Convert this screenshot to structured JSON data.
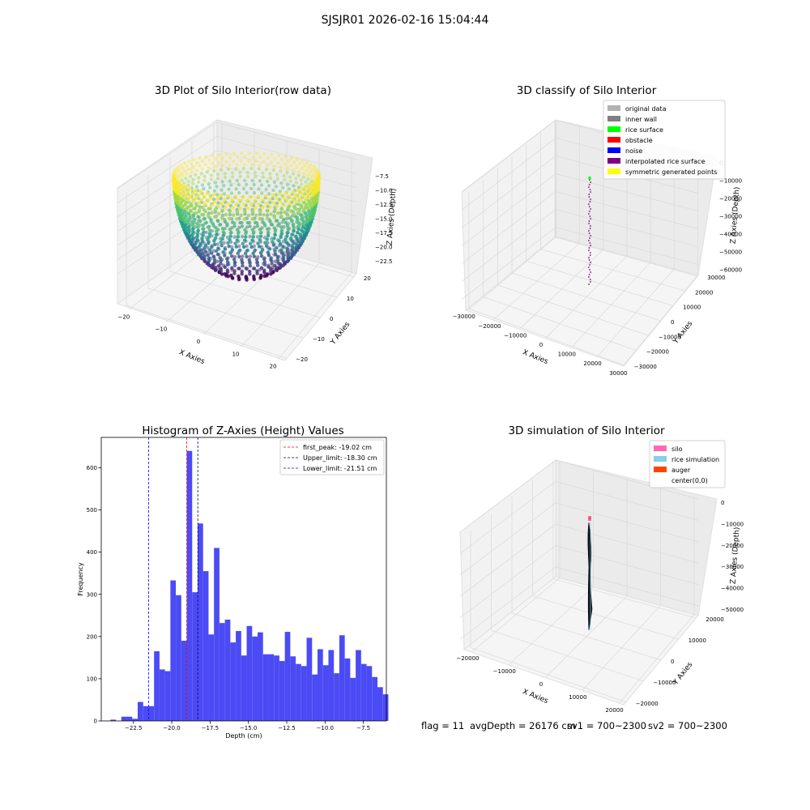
{
  "figure_title": "SJSJR01 2026-02-16 15:04:44",
  "footer": {
    "flag": "flag = 11",
    "avg_depth": "avgDepth = 26176 cm",
    "sv1": "sv1 = 700~2300",
    "sv2": "sv2 = 700~2300"
  },
  "colors": {
    "hist_bar": "#4b4bf5",
    "first_peak": "#ff0000",
    "upper_limit": "#000080",
    "lower_limit": "#0000ff",
    "pane": "#f2f2f2",
    "grid": "#d9d9d9"
  },
  "chart_data": [
    {
      "type": "scatter3d",
      "title": "3D Plot of Silo Interior(row data)",
      "xlabel": "X Axies",
      "ylabel": "Y Axies",
      "zlabel": "Z Axies (Depth)",
      "x_ticks": [
        "−20",
        "−10",
        "0",
        "10",
        "20"
      ],
      "y_ticks": [
        "−20",
        "−10",
        "0",
        "10",
        "20"
      ],
      "z_ticks": [
        "−7.5",
        "−10.0",
        "−12.5",
        "−15.0",
        "−17.5",
        "−20.0",
        "−22.5"
      ],
      "xlim": [
        -23,
        23
      ],
      "ylim": [
        -23,
        23
      ],
      "zlim": [
        -24,
        -6.5
      ],
      "shape": "bowl of points, radius about 22 at top (z about -7) narrowing to center at z about -23",
      "colormap": "viridis (by depth)",
      "grid": true
    },
    {
      "type": "scatter3d",
      "title": "3D classify of Silo Interior",
      "xlabel": "X Axies",
      "ylabel": "Y Axies",
      "zlabel": "Z Axies (Depth)",
      "x_ticks": [
        "−30000",
        "−20000",
        "−10000",
        "0",
        "10000",
        "20000",
        "30000"
      ],
      "y_ticks": [
        "−30000",
        "−20000",
        "−10000",
        "0",
        "10000",
        "20000",
        "30000"
      ],
      "z_ticks": [
        "0",
        "−10000",
        "−20000",
        "−30000",
        "−40000",
        "−50000",
        "−60000"
      ],
      "legend": [
        {
          "label": "original data",
          "color": "#b3b3b3"
        },
        {
          "label": "inner wall",
          "color": "#808080"
        },
        {
          "label": "rice surface",
          "color": "#00ff00"
        },
        {
          "label": "obstacle",
          "color": "#ff0000"
        },
        {
          "label": "noise",
          "color": "#0000ff"
        },
        {
          "label": "interpolated rice surface",
          "color": "#800080"
        },
        {
          "label": "symmetric generated points",
          "color": "#ffff00"
        }
      ],
      "legend_position": "top-right",
      "grid": true
    },
    {
      "type": "bar",
      "title": "Histogram of Z-Axies (Height) Values",
      "xlabel": "Depth (cm)",
      "ylabel": "Frequency",
      "xlim": [
        -24.6,
        -6
      ],
      "ylim": [
        0,
        672
      ],
      "x_ticks": [
        -22.5,
        -20.0,
        -17.5,
        -15.0,
        -12.5,
        -10.0,
        -7.5
      ],
      "x_tick_labels": [
        "−22.5",
        "−20.0",
        "−17.5",
        "−15.0",
        "−12.5",
        "−10.0",
        "−7.5"
      ],
      "y_ticks": [
        0,
        100,
        200,
        300,
        400,
        500,
        600
      ],
      "bin_start": -24.0,
      "bin_width": 0.3555,
      "values": [
        3,
        0,
        10,
        10,
        5,
        45,
        35,
        35,
        165,
        122,
        118,
        333,
        298,
        190,
        640,
        305,
        468,
        355,
        205,
        410,
        232,
        240,
        186,
        213,
        155,
        225,
        200,
        210,
        158,
        158,
        155,
        142,
        211,
        153,
        135,
        130,
        197,
        110,
        170,
        132,
        168,
        113,
        203,
        148,
        102,
        168,
        135,
        130,
        104,
        80,
        63
      ],
      "vlines": [
        {
          "label": "first_peak: -19.02 cm",
          "x": -19.02,
          "color": "#ff0000"
        },
        {
          "label": "Upper_limit: -18.30 cm",
          "x": -18.3,
          "color": "#000080"
        },
        {
          "label": "Lower_limit: -21.51 cm",
          "x": -21.51,
          "color": "#0000ff"
        }
      ],
      "legend_position": "top-right",
      "grid": false
    },
    {
      "type": "surface3d",
      "title": "3D simulation of Silo Interior",
      "xlabel": "X Axies",
      "ylabel": "Y Axies",
      "zlabel": "Z Axies (Depth)",
      "x_ticks": [
        "−20000",
        "−10000",
        "0",
        "10000",
        "20000"
      ],
      "y_ticks": [
        "−20000",
        "−10000",
        "0",
        "10000",
        "20000"
      ],
      "z_ticks": [
        "0",
        "−10000",
        "−20000",
        "−30000",
        "−40000",
        "−50000"
      ],
      "legend": [
        {
          "label": "silo",
          "color": "#ff69b4"
        },
        {
          "label": "rice simulation",
          "color": "#87ceeb"
        },
        {
          "label": "auger",
          "color": "#ff4500"
        },
        {
          "label": "center(0,0)",
          "color": "#ffffff"
        }
      ],
      "legend_position": "top-right",
      "grid": true
    }
  ]
}
